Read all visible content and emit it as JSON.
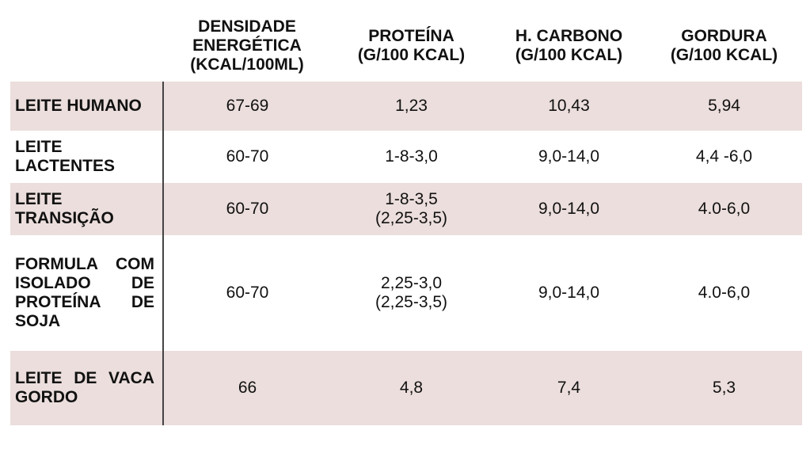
{
  "table": {
    "headers": [
      "",
      "DENSIDADE\nENERGÉTICA\n(KCAL/100ML)",
      "PROTEÍNA\n(G/100 KCAL)",
      "H. CARBONO\n(G/100 KCAL)",
      "GORDURA\n(G/100 KCAL)"
    ],
    "rows": [
      {
        "label": "LEITE HUMANO",
        "shaded": true,
        "cells": [
          "67-69",
          "1,23",
          "10,43",
          "5,94"
        ]
      },
      {
        "label": "LEITE LACTENTES",
        "shaded": false,
        "cells": [
          "60-70",
          "1-8-3,0",
          "9,0-14,0",
          "4,4 -6,0"
        ]
      },
      {
        "label": "LEITE TRANSIÇÃO",
        "shaded": true,
        "cells": [
          "60-70",
          "1-8-3,5\n(2,25-3,5)",
          "9,0-14,0",
          "4.0-6,0"
        ]
      },
      {
        "label": "FORMULA COM ISOLADO DE PROTEÍNA DE SOJA",
        "shaded": false,
        "cells": [
          "60-70",
          "2,25-3,0\n(2,25-3,5)",
          "9,0-14,0",
          "4.0-6,0"
        ]
      },
      {
        "label": "LEITE DE VACA GORDO",
        "shaded": true,
        "cells": [
          "66",
          "4,8",
          "7,4",
          "5,3"
        ]
      }
    ],
    "colors": {
      "shade": "#ebdedc",
      "divider": "#444444",
      "text": "#111111"
    }
  }
}
